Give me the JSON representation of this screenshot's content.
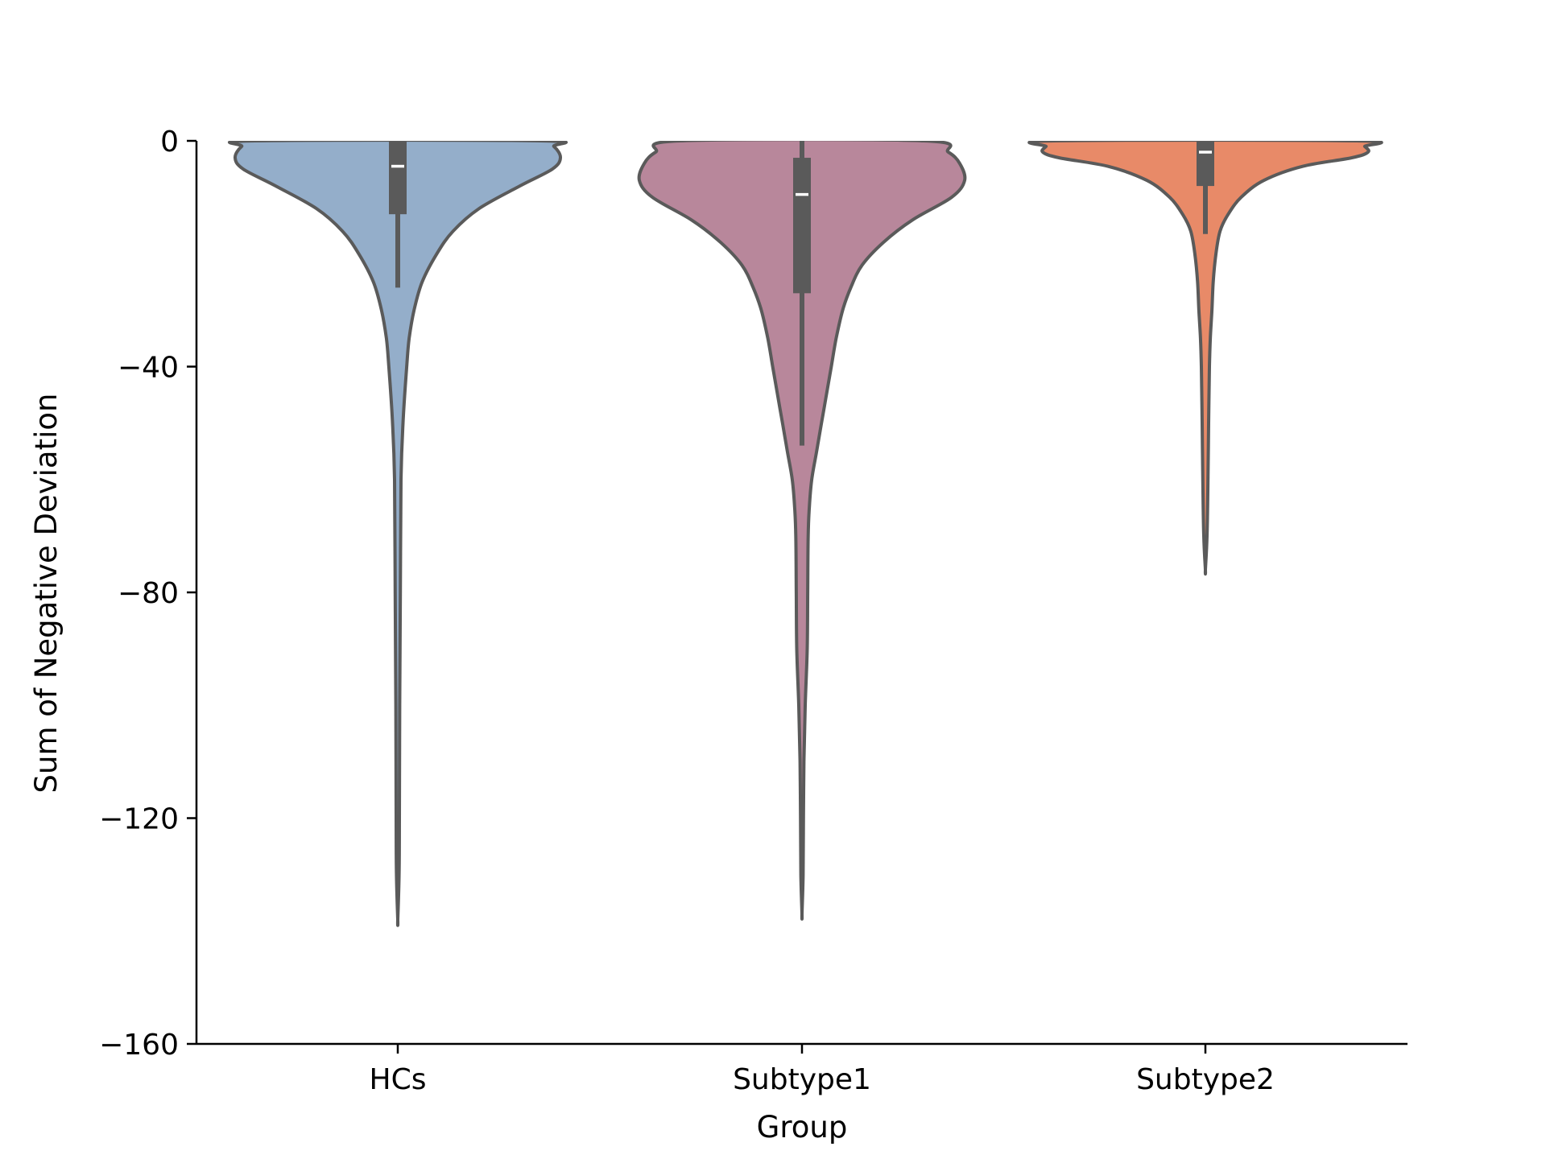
{
  "chart_data": {
    "type": "violin",
    "title": "",
    "xlabel": "Group",
    "ylabel": "Sum of Negative Deviation",
    "ylim": [
      -160,
      0
    ],
    "yticks": [
      0,
      -40,
      -80,
      -120,
      -160
    ],
    "ytick_labels": [
      "0",
      "−40",
      "−80",
      "−120",
      "−160"
    ],
    "grid": false,
    "categories": [
      "HCs",
      "Subtype1",
      "Subtype2"
    ],
    "series": [
      {
        "name": "HCs",
        "color": "#94aeca",
        "min": -138,
        "max": 0,
        "q1": -13,
        "median": -4.5,
        "q3": 0,
        "whisker_low": -26,
        "whisker_high": 0,
        "density_profile": [
          [
            0,
            0.88
          ],
          [
            -1,
            0.96
          ],
          [
            -3,
            1.0
          ],
          [
            -5,
            0.95
          ],
          [
            -8,
            0.75
          ],
          [
            -12,
            0.5
          ],
          [
            -16,
            0.34
          ],
          [
            -20,
            0.24
          ],
          [
            -25,
            0.15
          ],
          [
            -30,
            0.1
          ],
          [
            -35,
            0.07
          ],
          [
            -40,
            0.055
          ],
          [
            -50,
            0.032
          ],
          [
            -60,
            0.02
          ],
          [
            -80,
            0.016
          ],
          [
            -100,
            0.012
          ],
          [
            -120,
            0.01
          ],
          [
            -130,
            0.008
          ],
          [
            -138,
            0
          ]
        ]
      },
      {
        "name": "Subtype1",
        "color": "#b8879b",
        "min": -137,
        "max": 0,
        "q1": -27,
        "median": -9.5,
        "q3": -3,
        "whisker_low": -54,
        "whisker_high": 0,
        "density_profile": [
          [
            0,
            0.75
          ],
          [
            -2,
            0.9
          ],
          [
            -4,
            0.97
          ],
          [
            -7,
            1.0
          ],
          [
            -10,
            0.92
          ],
          [
            -14,
            0.68
          ],
          [
            -18,
            0.5
          ],
          [
            -22,
            0.37
          ],
          [
            -26,
            0.3
          ],
          [
            -30,
            0.25
          ],
          [
            -35,
            0.21
          ],
          [
            -40,
            0.18
          ],
          [
            -45,
            0.15
          ],
          [
            -50,
            0.12
          ],
          [
            -55,
            0.09
          ],
          [
            -60,
            0.06
          ],
          [
            -65,
            0.045
          ],
          [
            -70,
            0.038
          ],
          [
            -80,
            0.035
          ],
          [
            -90,
            0.032
          ],
          [
            -100,
            0.02
          ],
          [
            -110,
            0.012
          ],
          [
            -120,
            0.009
          ],
          [
            -130,
            0.007
          ],
          [
            -137,
            0
          ]
        ]
      },
      {
        "name": "Subtype2",
        "color": "#e88a68",
        "min": -76,
        "max": 0,
        "q1": -8,
        "median": -2,
        "q3": 0,
        "whisker_low": -16.5,
        "whisker_high": 0,
        "density_profile": [
          [
            0,
            0.93
          ],
          [
            -1,
            0.98
          ],
          [
            -2,
            1.0
          ],
          [
            -3,
            0.9
          ],
          [
            -4.5,
            0.6
          ],
          [
            -7,
            0.36
          ],
          [
            -10,
            0.22
          ],
          [
            -13,
            0.14
          ],
          [
            -16,
            0.09
          ],
          [
            -20,
            0.065
          ],
          [
            -25,
            0.048
          ],
          [
            -30,
            0.04
          ],
          [
            -35,
            0.03
          ],
          [
            -40,
            0.025
          ],
          [
            -50,
            0.02
          ],
          [
            -60,
            0.016
          ],
          [
            -70,
            0.01
          ],
          [
            -76,
            0
          ]
        ]
      }
    ]
  }
}
